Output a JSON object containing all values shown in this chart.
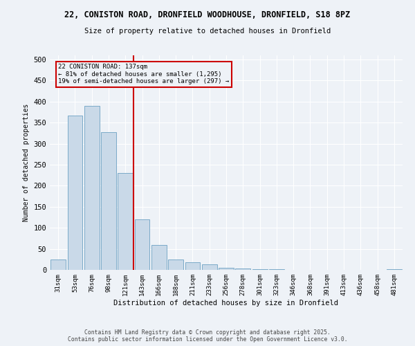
{
  "title_line1": "22, CONISTON ROAD, DRONFIELD WOODHOUSE, DRONFIELD, S18 8PZ",
  "title_line2": "Size of property relative to detached houses in Dronfield",
  "xlabel": "Distribution of detached houses by size in Dronfield",
  "ylabel": "Number of detached properties",
  "footer_line1": "Contains HM Land Registry data © Crown copyright and database right 2025.",
  "footer_line2": "Contains public sector information licensed under the Open Government Licence v3.0.",
  "categories": [
    "31sqm",
    "53sqm",
    "76sqm",
    "98sqm",
    "121sqm",
    "143sqm",
    "166sqm",
    "188sqm",
    "211sqm",
    "233sqm",
    "256sqm",
    "278sqm",
    "301sqm",
    "323sqm",
    "346sqm",
    "368sqm",
    "391sqm",
    "413sqm",
    "436sqm",
    "458sqm",
    "481sqm"
  ],
  "values": [
    25,
    367,
    390,
    328,
    230,
    120,
    60,
    25,
    18,
    13,
    5,
    3,
    2,
    1,
    0,
    0,
    0,
    0,
    0,
    0,
    2
  ],
  "bar_color": "#c9d9e8",
  "bar_edge_color": "#7aaac8",
  "vline_x_index": 4.5,
  "vline_color": "#cc0000",
  "annotation_title": "22 CONISTON ROAD: 137sqm",
  "annotation_line1": "← 81% of detached houses are smaller (1,295)",
  "annotation_line2": "19% of semi-detached houses are larger (297) →",
  "ylim": [
    0,
    510
  ],
  "yticks": [
    0,
    50,
    100,
    150,
    200,
    250,
    300,
    350,
    400,
    450,
    500
  ],
  "background_color": "#eef2f7",
  "grid_color": "#ffffff"
}
